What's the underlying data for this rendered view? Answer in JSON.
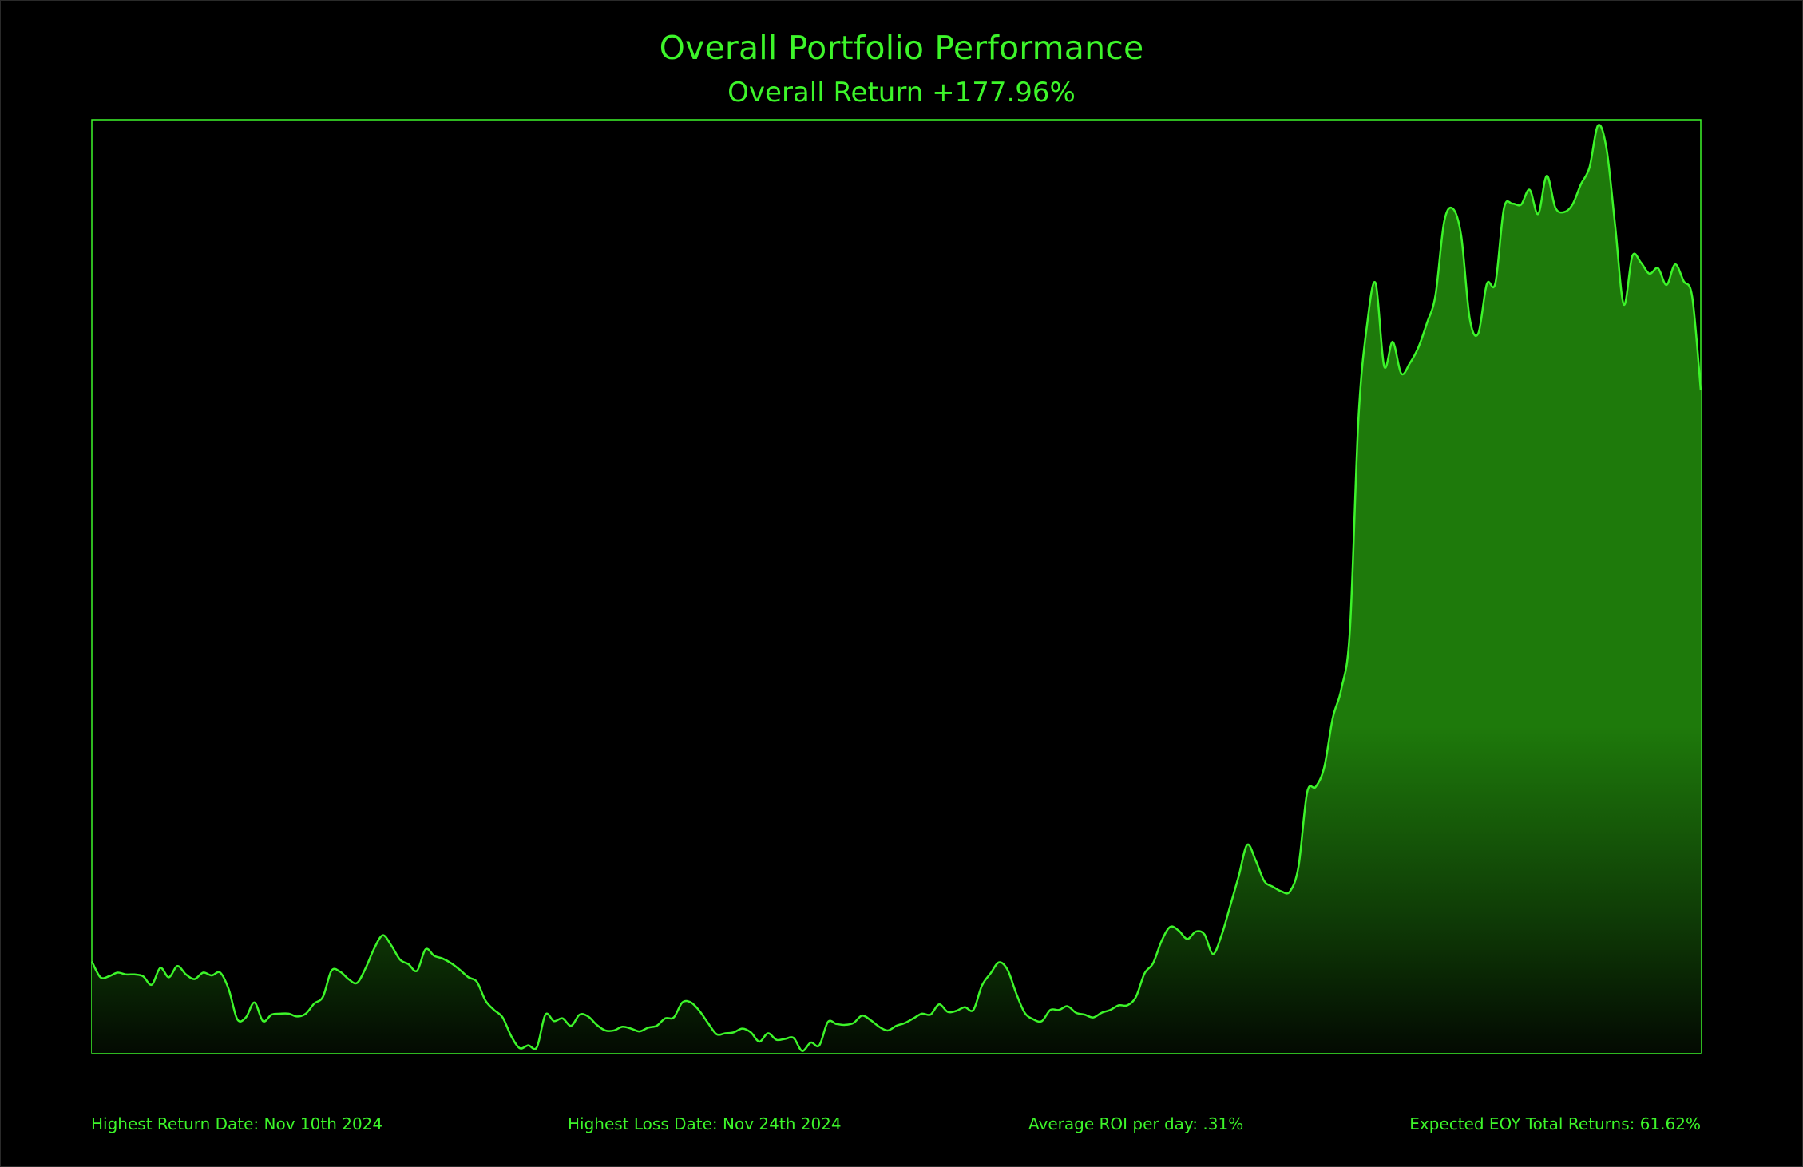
{
  "title": "Overall Portfolio Performance",
  "subtitle": "Overall Return +177.96%",
  "footer": {
    "highest_return": "Highest Return Date: Nov 10th 2024",
    "highest_loss": "Highest Loss Date: Nov 24th 2024",
    "avg_roi": "Average ROI per day: .31%",
    "expected_eoy": "Expected EOY Total Returns: 61.62%"
  },
  "colors": {
    "background": "#000000",
    "accent": "#3df52a",
    "fill_top": "#1e7a0b",
    "fill_bottom": "#030a02"
  },
  "chart_data": {
    "type": "area",
    "title": "Overall Portfolio Performance",
    "subtitle": "Overall Return +177.96%",
    "xlabel": "",
    "ylabel": "",
    "grid": false,
    "legend": "none",
    "ylim": [
      0,
      100
    ],
    "series": [
      {
        "values": [
          9.8,
          8.1,
          8.2,
          8.6,
          8.4,
          8.4,
          8.2,
          7.3,
          9.1,
          8.1,
          9.3,
          8.4,
          7.9,
          8.6,
          8.3,
          8.6,
          6.8,
          3.6,
          3.8,
          5.4,
          3.4,
          4.1,
          4.2,
          4.2,
          3.9,
          4.2,
          5.3,
          6.0,
          8.8,
          8.7,
          7.9,
          7.5,
          9.1,
          11.2,
          12.6,
          11.5,
          10.0,
          9.5,
          8.8,
          11.1,
          10.4,
          10.1,
          9.6,
          8.9,
          8.1,
          7.6,
          5.6,
          4.6,
          3.8,
          1.8,
          0.5,
          0.8,
          0.6,
          4.1,
          3.4,
          3.7,
          2.9,
          4.1,
          3.9,
          3.0,
          2.4,
          2.4,
          2.8,
          2.6,
          2.3,
          2.7,
          2.9,
          3.7,
          3.8,
          5.4,
          5.4,
          4.5,
          3.2,
          2.0,
          2.1,
          2.2,
          2.6,
          2.2,
          1.2,
          2.1,
          1.4,
          1.5,
          1.6,
          0.2,
          1.1,
          0.8,
          3.3,
          3.1,
          3.0,
          3.2,
          4.0,
          3.5,
          2.8,
          2.4,
          2.9,
          3.2,
          3.7,
          4.2,
          4.1,
          5.2,
          4.4,
          4.5,
          4.9,
          4.6,
          7.2,
          8.5,
          9.7,
          8.9,
          6.4,
          4.3,
          3.6,
          3.4,
          4.6,
          4.6,
          5.0,
          4.3,
          4.1,
          3.8,
          4.3,
          4.6,
          5.1,
          5.1,
          6.0,
          8.5,
          9.6,
          12.0,
          13.5,
          13.1,
          12.2,
          13.0,
          12.7,
          10.6,
          12.6,
          15.7,
          18.9,
          22.3,
          20.6,
          18.4,
          17.8,
          17.3,
          17.3,
          20.0,
          27.9,
          28.5,
          30.6,
          35.9,
          39.0,
          45.3,
          68.0,
          78.0,
          82.5,
          73.6,
          76.2,
          72.8,
          73.9,
          75.6,
          78.2,
          81.2,
          89.0,
          90.5,
          87.6,
          78.7,
          77.1,
          82.4,
          82.5,
          90.5,
          91.0,
          90.9,
          92.5,
          89.9,
          94.0,
          90.6,
          90.1,
          90.9,
          93.1,
          94.9,
          99.4,
          96.8,
          88.6,
          80.2,
          85.4,
          84.7,
          83.5,
          84.1,
          82.3,
          84.5,
          82.7,
          81.0,
          71.0
        ]
      }
    ]
  }
}
